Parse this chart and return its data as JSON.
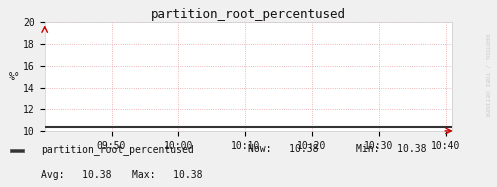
{
  "title": "partition_root_percentused",
  "ylabel": "%°",
  "ylim": [
    10,
    20
  ],
  "yticks": [
    10,
    12,
    14,
    16,
    18,
    20
  ],
  "xticklabels": [
    "09:50",
    "10:00",
    "10:10",
    "10:20",
    "10:30",
    "10:40"
  ],
  "x_tick_positions": [
    10,
    20,
    30,
    40,
    50,
    60
  ],
  "xlim": [
    0,
    61
  ],
  "line_value": 10.38,
  "line_color": "#333333",
  "arrow_color": "#cc0000",
  "grid_color": "#e8a0a0",
  "bg_color": "#f0f0f0",
  "plot_bg_color": "#ffffff",
  "legend_label": "partition_root_percentused",
  "now_val": "10.38",
  "min_val": "10.38",
  "avg_val": "10.38",
  "max_val": "10.38",
  "title_fontsize": 9,
  "tick_fontsize": 7,
  "legend_fontsize": 7,
  "watermark": "RRDTOOL / TOBI OETIKER"
}
